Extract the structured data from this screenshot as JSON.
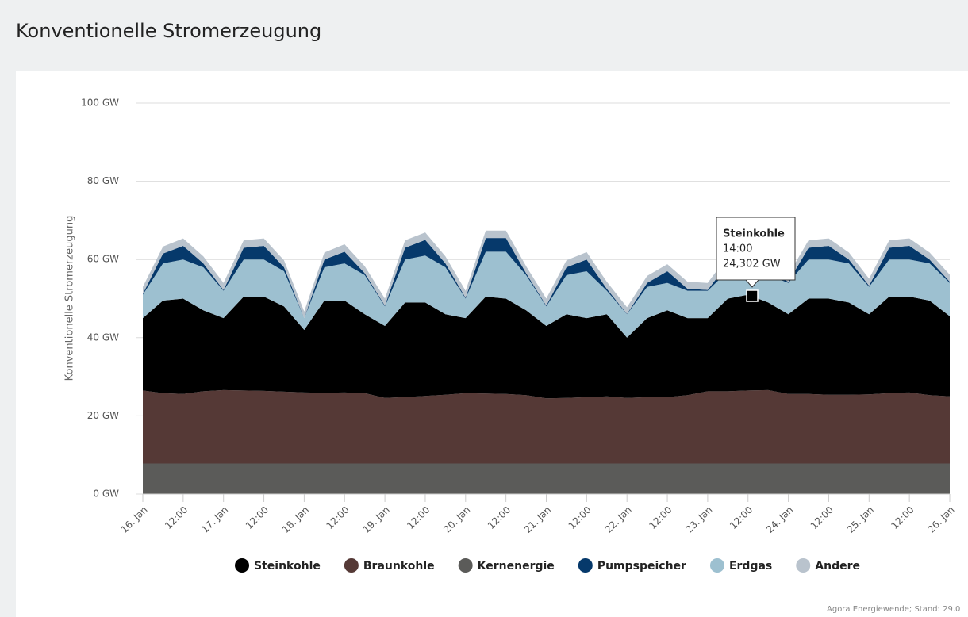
{
  "chart_data": {
    "type": "stacked-area",
    "title": "Konventionelle Stromerzeugung",
    "ylabel": "Konventionelle Stromerzeugung",
    "x": [
      0,
      6,
      12,
      18,
      24,
      30,
      36,
      42,
      48,
      54,
      60,
      66,
      72,
      78,
      84,
      90,
      96,
      102,
      108,
      114,
      120,
      126,
      132,
      138,
      144,
      150,
      156,
      162,
      168,
      174,
      180,
      186,
      192,
      198,
      204,
      210,
      216,
      222,
      228,
      234,
      240
    ],
    "xlim": [
      0,
      240
    ],
    "xticks": [
      {
        "value": 0,
        "label": "16. Jan"
      },
      {
        "value": 12,
        "label": "12:00"
      },
      {
        "value": 24,
        "label": "17. Jan"
      },
      {
        "value": 36,
        "label": "12:00"
      },
      {
        "value": 48,
        "label": "18. Jan"
      },
      {
        "value": 60,
        "label": "12:00"
      },
      {
        "value": 72,
        "label": "19. Jan"
      },
      {
        "value": 84,
        "label": "12:00"
      },
      {
        "value": 96,
        "label": "20. Jan"
      },
      {
        "value": 108,
        "label": "12:00"
      },
      {
        "value": 120,
        "label": "21. Jan"
      },
      {
        "value": 132,
        "label": "12:00"
      },
      {
        "value": 144,
        "label": "22. Jan"
      },
      {
        "value": 156,
        "label": "12:00"
      },
      {
        "value": 168,
        "label": "23. Jan"
      },
      {
        "value": 180,
        "label": "12:00"
      },
      {
        "value": 192,
        "label": "24. Jan"
      },
      {
        "value": 204,
        "label": "12:00"
      },
      {
        "value": 216,
        "label": "25. Jan"
      },
      {
        "value": 228,
        "label": "12:00"
      },
      {
        "value": 240,
        "label": "26. Jan"
      }
    ],
    "ylim": [
      0,
      100
    ],
    "yticks": [
      {
        "value": 0,
        "label": "0 GW"
      },
      {
        "value": 20,
        "label": "20 GW"
      },
      {
        "value": 40,
        "label": "40 GW"
      },
      {
        "value": 60,
        "label": "60 GW"
      },
      {
        "value": 80,
        "label": "80 GW"
      },
      {
        "value": 100,
        "label": "100 GW"
      }
    ],
    "grid": true,
    "series": [
      {
        "name": "Steinkohle",
        "color": "#000000",
        "values": [
          18.5,
          23.7,
          24.4,
          20.7,
          18.4,
          24,
          24.1,
          21.8,
          16,
          23.6,
          23.5,
          20.2,
          18.4,
          24.2,
          23.9,
          20.6,
          19.2,
          24.8,
          24.4,
          21.7,
          18.5,
          21.4,
          20.2,
          21,
          15.4,
          20.2,
          22.2,
          19.7,
          18.7,
          23.7,
          24.5,
          22.4,
          20.4,
          24.4,
          24.6,
          23.6,
          20.5,
          24.7,
          24.5,
          24.2,
          20.5
        ]
      },
      {
        "name": "Braunkohle",
        "color": "#553936",
        "values": [
          18.7,
          18,
          17.8,
          18.5,
          18.8,
          18.7,
          18.6,
          18.4,
          18.2,
          18.1,
          18.2,
          18,
          16.8,
          17,
          17.3,
          17.6,
          18,
          17.9,
          17.8,
          17.5,
          16.7,
          16.8,
          17,
          17.2,
          16.8,
          17,
          17,
          17.5,
          18.5,
          18.5,
          18.7,
          18.8,
          17.8,
          17.8,
          17.6,
          17.6,
          17.7,
          18,
          18.2,
          17.5,
          17.2
        ]
      },
      {
        "name": "Kernenergie",
        "color": "#5b5b59",
        "values": [
          7.8,
          7.8,
          7.8,
          7.8,
          7.8,
          7.8,
          7.8,
          7.8,
          7.8,
          7.8,
          7.8,
          7.8,
          7.8,
          7.8,
          7.8,
          7.8,
          7.8,
          7.8,
          7.8,
          7.8,
          7.8,
          7.8,
          7.8,
          7.8,
          7.8,
          7.8,
          7.8,
          7.8,
          7.8,
          7.8,
          7.8,
          7.8,
          7.8,
          7.8,
          7.8,
          7.8,
          7.8,
          7.8,
          7.8,
          7.8,
          7.8
        ]
      },
      {
        "name": "Pumpspeicher",
        "color": "#06396b",
        "values": [
          0.2,
          2.5,
          3.5,
          1,
          0.2,
          3,
          3.5,
          1,
          0,
          2,
          3,
          0.5,
          0.2,
          3,
          4,
          1,
          0.2,
          3.5,
          3.5,
          0.5,
          0.2,
          2,
          3,
          0.5,
          0.1,
          1,
          3,
          0.5,
          0.2,
          2,
          2.5,
          1,
          0.3,
          3,
          3.5,
          1,
          0.3,
          3,
          3.5,
          1,
          0.3
        ]
      },
      {
        "name": "Erdgas",
        "color": "#9dc0d0",
        "values": [
          6,
          9.5,
          10,
          11,
          7,
          9.5,
          9.5,
          9,
          3,
          8.5,
          9.5,
          10,
          5,
          11,
          12,
          12,
          5,
          11.5,
          12,
          9,
          5,
          10,
          12,
          6,
          6,
          8,
          7,
          7,
          7,
          7,
          7,
          7,
          8,
          10,
          10,
          10,
          7,
          9.5,
          9.5,
          9.5,
          8.5
        ]
      },
      {
        "name": "Andere",
        "color": "#b9c3cd",
        "values": [
          1.8,
          1.8,
          1.9,
          1.8,
          1.8,
          1.9,
          1.9,
          1.8,
          1.7,
          1.8,
          1.9,
          1.8,
          1.8,
          1.9,
          1.9,
          1.8,
          1.8,
          1.9,
          1.9,
          1.8,
          1.8,
          1.8,
          1.9,
          1.8,
          1.7,
          1.8,
          1.8,
          1.8,
          1.8,
          1.9,
          1.9,
          1.8,
          1.8,
          1.9,
          1.9,
          1.8,
          1.8,
          1.9,
          1.9,
          1.8,
          1.8
        ]
      }
    ],
    "tooltip": {
      "title": "Steinkohle",
      "lines": [
        "14:00",
        "24,302 GW"
      ]
    },
    "source": "Agora Energiewende; Stand: 29.0"
  }
}
